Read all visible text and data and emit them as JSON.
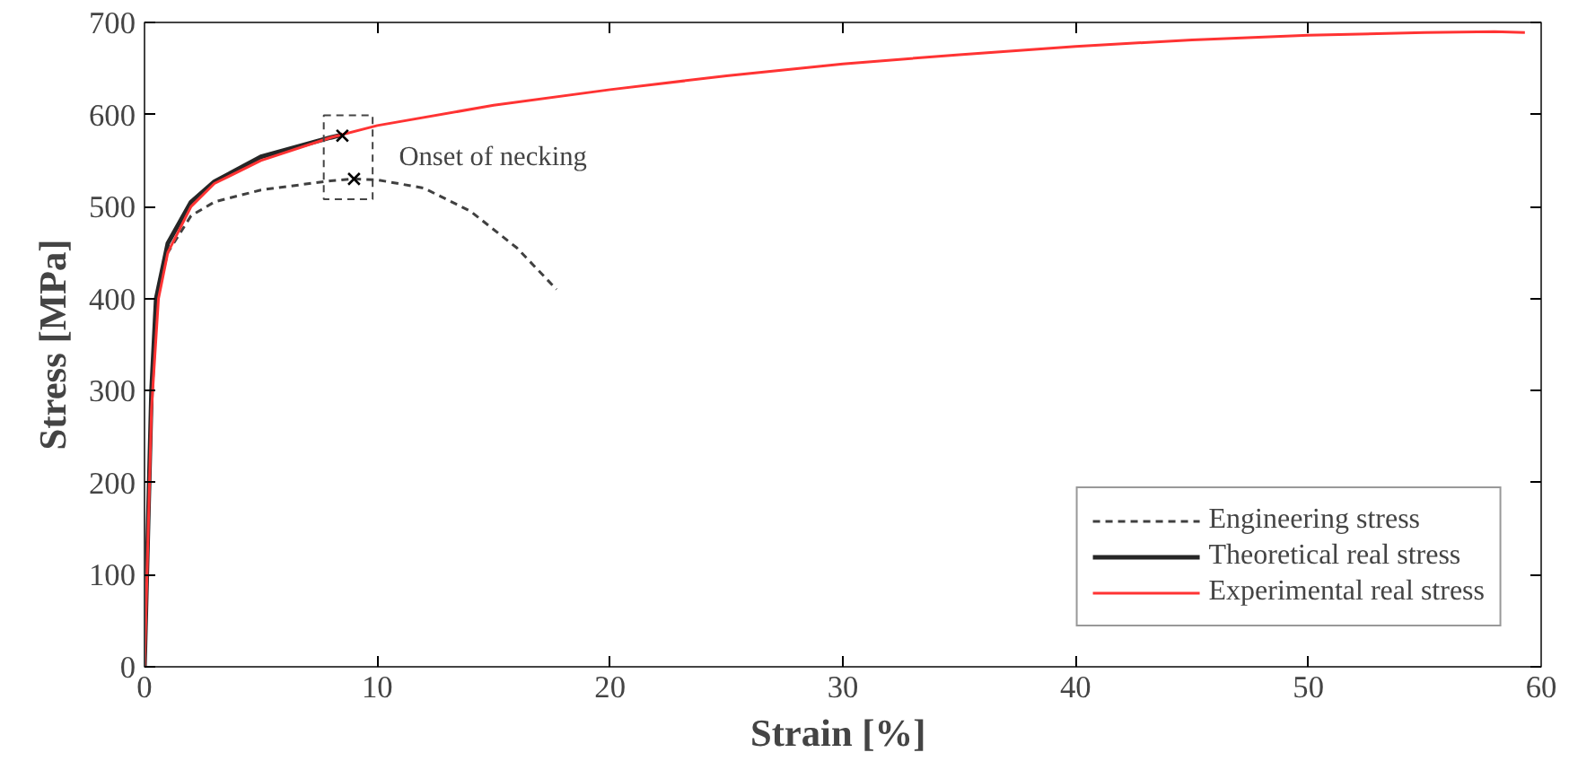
{
  "chart_data": {
    "type": "line",
    "xlabel": "Strain  [%]",
    "ylabel": "Stress [MPa]",
    "xlim": [
      0,
      60
    ],
    "ylim": [
      0,
      700
    ],
    "xticks": [
      0,
      10,
      20,
      30,
      40,
      50,
      60
    ],
    "yticks": [
      0,
      100,
      200,
      300,
      400,
      500,
      600,
      700
    ],
    "grid": false,
    "legend": "bottom right",
    "annotations": [
      "Onset of necking"
    ],
    "series": [
      {
        "name": "Engineering stress",
        "color": "#404040",
        "line_style": "dashed",
        "x": [
          0,
          0.3,
          0.5,
          1,
          2,
          3,
          5,
          8,
          9,
          10,
          12,
          14,
          16,
          17.7
        ],
        "values": [
          0,
          300,
          400,
          450,
          490,
          505,
          518,
          528,
          530,
          529,
          520,
          495,
          455,
          410
        ]
      },
      {
        "name": "Theoretical real stress",
        "color": "#262626",
        "line_style": "solid",
        "x": [
          0,
          0.3,
          0.5,
          1,
          2,
          3,
          5,
          8,
          8.5
        ],
        "values": [
          0,
          300,
          400,
          460,
          505,
          527,
          554,
          575,
          578
        ]
      },
      {
        "name": "Experimental real stress",
        "color": "#ff3333",
        "line_style": "solid",
        "x": [
          0,
          0.3,
          0.6,
          1,
          2,
          3,
          5,
          8,
          10,
          15,
          20,
          25,
          30,
          35,
          40,
          45,
          50,
          55,
          58,
          59.3
        ],
        "values": [
          0,
          280,
          400,
          450,
          500,
          525,
          550,
          575,
          588,
          610,
          627,
          642,
          655,
          665,
          674,
          681,
          686,
          689,
          690,
          689
        ]
      },
      {
        "type": "scatter",
        "marker": "cross",
        "color": "#000000",
        "x": [
          8.5,
          9
        ],
        "values": [
          577,
          530
        ]
      }
    ]
  }
}
